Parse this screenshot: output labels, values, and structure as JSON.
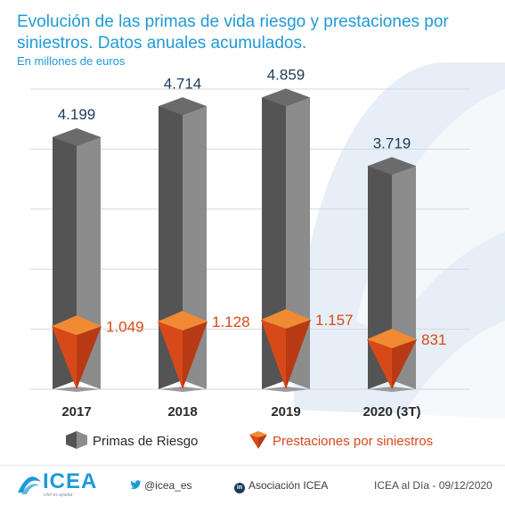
{
  "header": {
    "title": "Evolución de las primas de vida riesgo y prestaciones por siniestros. Datos anuales acumulados.",
    "subtitle": "En millones de euros"
  },
  "chart_data": {
    "type": "bar",
    "categories": [
      "2017",
      "2018",
      "2019",
      "2020 (3T)"
    ],
    "series": [
      {
        "name": "Primas de Riesgo",
        "values": [
          4199,
          4714,
          4859,
          3719
        ],
        "labels": [
          "4.199",
          "4.714",
          "4.859",
          "3.719"
        ],
        "color": "#6f6f6f",
        "shape": "3d-column"
      },
      {
        "name": "Prestaciones por siniestros",
        "values": [
          1049,
          1128,
          1157,
          831
        ],
        "labels": [
          "1.049",
          "1.128",
          "1.157",
          "831"
        ],
        "color": "#e8521c",
        "shape": "3d-inverted-pyramid"
      }
    ],
    "ylim": [
      0,
      5000
    ],
    "grid": true,
    "legend_position": "bottom",
    "label_colors": {
      "primas": "#1f3a5a",
      "prestaciones": "#d8491a"
    }
  },
  "footer": {
    "logo_text": "ICEA",
    "logo_tagline": "Unir es ayudar",
    "twitter": "@icea_es",
    "linkedin": "Asociación ICEA",
    "linkedin_icon_text": "in",
    "source": "ICEA al Día - 09/12/2020"
  }
}
